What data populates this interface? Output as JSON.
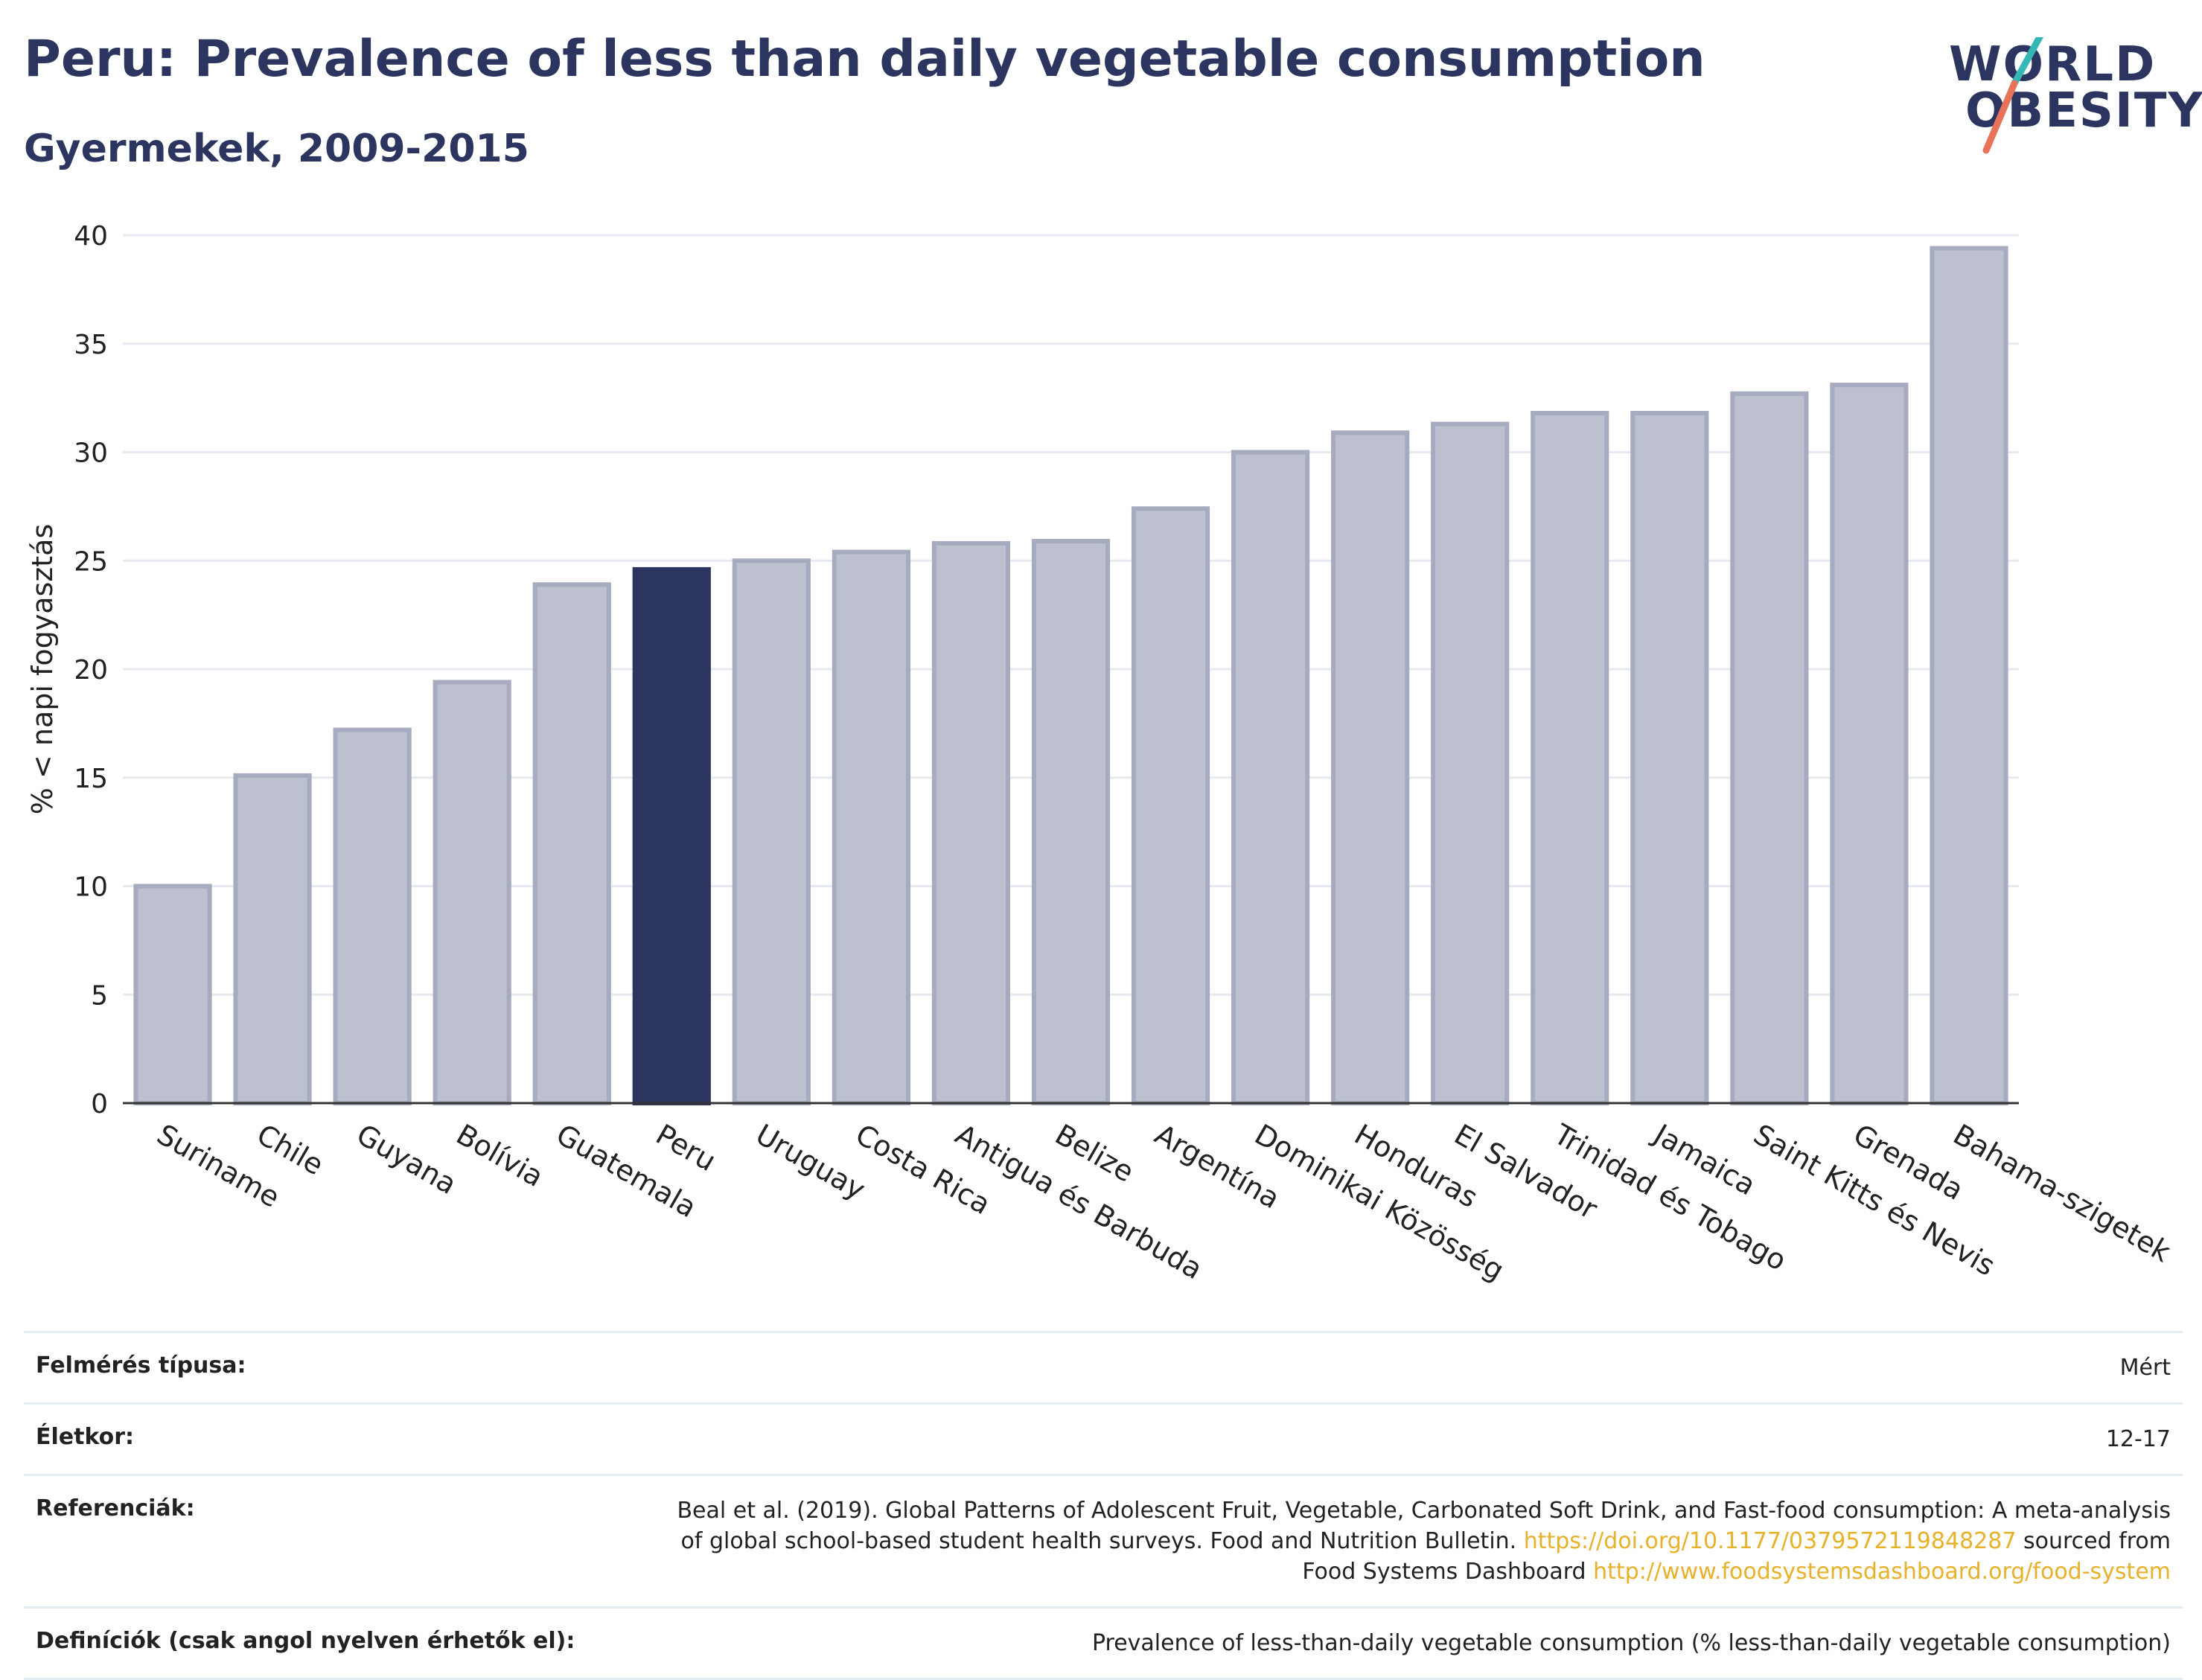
{
  "header": {
    "title": "Peru: Prevalence of less than daily vegetable consumption",
    "subtitle": "Gyermekek, 2009-2015"
  },
  "logo": {
    "line1": "WORLD",
    "line2": "OBESITY"
  },
  "chart_data": {
    "type": "bar",
    "ylabel": "% < napi fogyasztás",
    "ylim": [
      0,
      40
    ],
    "yticks": [
      0,
      5,
      10,
      15,
      20,
      25,
      30,
      35,
      40
    ],
    "grid": true,
    "categories": [
      "Suriname",
      "Chile",
      "Guyana",
      "Bolívia",
      "Guatemala",
      "Peru",
      "Uruguay",
      "Costa Rica",
      "Antigua és Barbuda",
      "Belize",
      "Argentína",
      "Dominikai Közösség",
      "Honduras",
      "El Salvador",
      "Trinidad és Tobago",
      "Jamaica",
      "Saint Kitts és Nevis",
      "Grenada",
      "Bahama-szigetek"
    ],
    "values": [
      10.0,
      15.1,
      17.2,
      19.4,
      23.9,
      24.6,
      25.0,
      25.4,
      25.8,
      25.9,
      27.4,
      30.0,
      30.9,
      31.3,
      31.8,
      31.8,
      32.7,
      33.1,
      39.4
    ],
    "highlight": "Peru",
    "colors": {
      "highlight": "#2b3560",
      "default": "#bcc0cf",
      "default_edge": "#a6abbf"
    }
  },
  "meta": {
    "survey_label": "Felmérés típusa:",
    "survey_value": "Mért",
    "age_label": "Életkor:",
    "age_value": "12-17",
    "ref_label": "Referenciák:",
    "ref_text1": "Beal et al. (2019). Global Patterns of Adolescent Fruit, Vegetable, Carbonated Soft Drink, and Fast-food consumption: A meta-analysis",
    "ref_text2": "of global school-based student health surveys. Food and Nutrition Bulletin.",
    "ref_link1": "https://doi.org/10.1177/0379572119848287",
    "ref_text3": "sourced from",
    "ref_text4": "Food Systems Dashboard",
    "ref_link2": "http://www.foodsystemsdashboard.org/food-system",
    "def_label": "Definíciók (csak angol nyelven érhetők el):",
    "def_value": "Prevalence of less-than-daily vegetable consumption (% less-than-daily vegetable consumption)"
  }
}
